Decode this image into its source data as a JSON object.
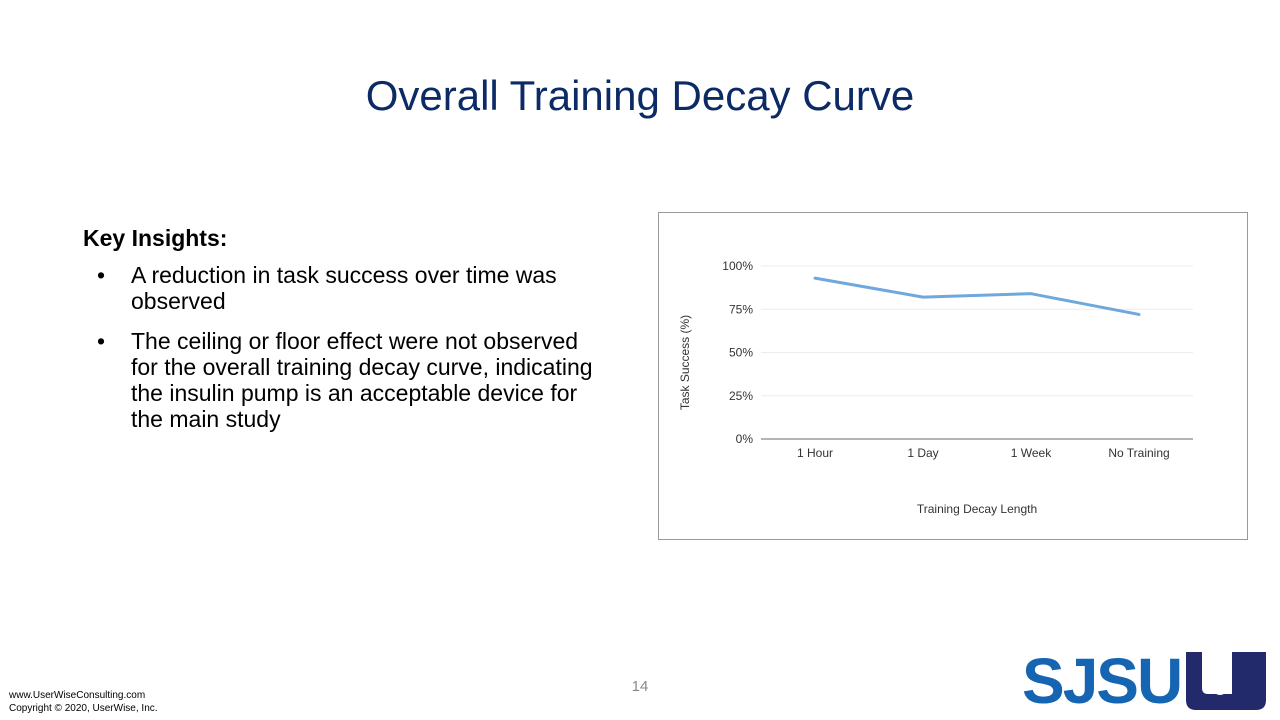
{
  "slide": {
    "title": "Overall Training Decay Curve",
    "page_number": "14"
  },
  "insights": {
    "heading": "Key Insights:",
    "bullets": [
      "A reduction in task success over time was observed",
      "The ceiling or floor effect were not observed for the overall training decay curve, indicating the insulin pump is an acceptable device for the main study"
    ]
  },
  "footer": {
    "url": "www.UserWiseConsulting.com",
    "copyright": "Copyright ©  2020, UserWise, Inc."
  },
  "logos": {
    "sjsu_text": "SJSU",
    "sjsu_color": "#1565b3",
    "userwise_icon": "userwise-logo-icon",
    "userwise_color": "#232a6b"
  },
  "chart_data": {
    "type": "line",
    "categories": [
      "1 Hour",
      "1 Day",
      "1 Week",
      "No Training"
    ],
    "series": [
      {
        "name": "",
        "values": [
          93,
          82,
          84,
          72
        ],
        "color": "#6fa8dc"
      }
    ],
    "title": "",
    "xlabel": "Training Decay Length",
    "ylabel": "Task Success (%)",
    "ylim": [
      0,
      100
    ],
    "yticks": [
      0,
      25,
      50,
      75,
      100
    ],
    "ytick_labels": [
      "0%",
      "25%",
      "50%",
      "75%",
      "100%"
    ],
    "grid": true,
    "legend": "none"
  }
}
